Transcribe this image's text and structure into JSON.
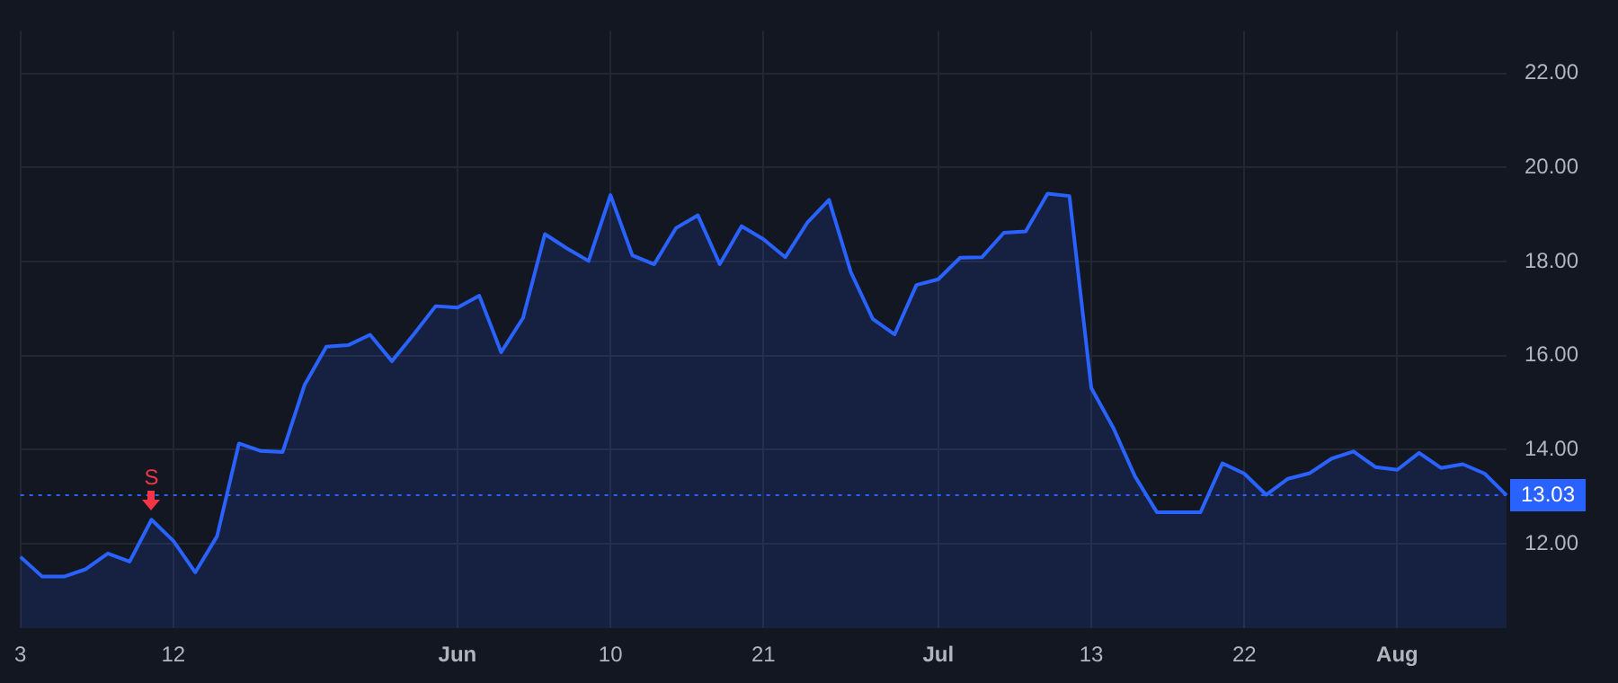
{
  "chart_data": {
    "type": "area",
    "categories": [
      "3",
      null,
      null,
      null,
      null,
      null,
      null,
      "12",
      null,
      null,
      null,
      null,
      null,
      null,
      null,
      null,
      null,
      null,
      null,
      null,
      "Jun",
      null,
      null,
      null,
      null,
      null,
      null,
      "10",
      null,
      null,
      null,
      null,
      null,
      null,
      "21",
      null,
      null,
      null,
      null,
      null,
      null,
      null,
      "Jul",
      null,
      null,
      null,
      null,
      null,
      null,
      "13",
      null,
      null,
      null,
      null,
      null,
      null,
      "22",
      null,
      null,
      null,
      null,
      null,
      null,
      "Aug",
      null,
      null,
      null,
      null,
      null
    ],
    "series": [
      {
        "color": "#2962ff",
        "values": [
          11.72,
          11.3,
          11.3,
          11.46,
          11.79,
          11.62,
          12.51,
          12.06,
          11.39,
          12.16,
          14.13,
          13.97,
          13.95,
          15.37,
          16.19,
          16.22,
          16.44,
          15.88,
          16.45,
          17.05,
          17.02,
          17.27,
          16.07,
          16.8,
          18.58,
          18.28,
          18.01,
          19.41,
          18.13,
          17.94,
          18.71,
          18.98,
          17.94,
          18.75,
          18.47,
          18.09,
          18.82,
          19.31,
          17.77,
          16.78,
          16.45,
          17.5,
          17.62,
          18.08,
          18.09,
          18.61,
          18.64,
          19.44,
          19.39,
          15.31,
          14.47,
          13.43,
          12.67,
          12.67,
          12.67,
          13.71,
          13.49,
          13.04,
          13.38,
          13.5,
          13.81,
          13.96,
          13.63,
          13.57,
          13.93,
          13.61,
          13.69,
          13.49,
          13.03
        ]
      }
    ],
    "ylim": [
      10.2,
      22.9
    ],
    "yticks": [
      {
        "value": 12,
        "label": "12.00"
      },
      {
        "value": 14,
        "label": "14.00"
      },
      {
        "value": 16,
        "label": "16.00"
      },
      {
        "value": 18,
        "label": "18.00"
      },
      {
        "value": 20,
        "label": "20.00"
      },
      {
        "value": 22,
        "label": "22.00"
      }
    ],
    "ref_lines": [
      {
        "axis": "y",
        "value": 13.03,
        "label": "13.03",
        "color": "#2962ff",
        "line_style": "dotted"
      }
    ],
    "annotations": [
      {
        "text": "S",
        "y": 12.51
      }
    ],
    "grid": true,
    "legend": false,
    "marker": "none",
    "line_style": "solid"
  }
}
